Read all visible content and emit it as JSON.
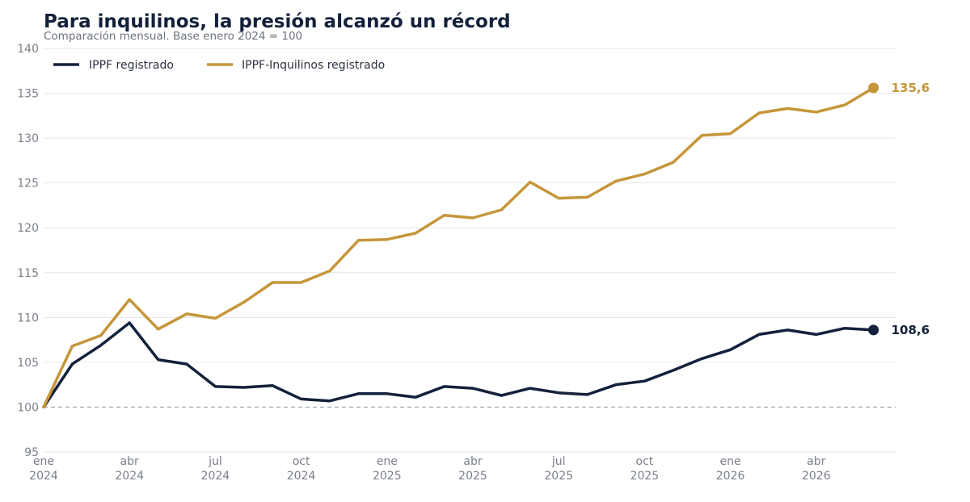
{
  "title": "Para inquilinos, la presión alcanzó un récord",
  "subtitle": "Comparación mensual. Base enero 2024 = 100",
  "colors": {
    "ippf": "#13213b",
    "ippf_inquilinos": "#c5963a",
    "grid": "#e6e6e6",
    "baseline": "#9aa0a8",
    "tick_text": "#7a808a"
  },
  "chart_data": {
    "type": "line",
    "title": "Para inquilinos, la presión alcanzó un récord",
    "subtitle": "Comparación mensual. Base enero 2024 = 100",
    "xlabel": "",
    "ylabel": "",
    "ylim": [
      95,
      140
    ],
    "yticks": [
      95,
      100,
      105,
      110,
      115,
      120,
      125,
      130,
      135,
      140
    ],
    "grid": true,
    "legend_position": "top-left",
    "baseline": 100,
    "x_ticks": [
      {
        "index": 0,
        "month": "ene",
        "year": "2024"
      },
      {
        "index": 3,
        "month": "abr",
        "year": "2024"
      },
      {
        "index": 6,
        "month": "jul",
        "year": "2024"
      },
      {
        "index": 9,
        "month": "oct",
        "year": "2024"
      },
      {
        "index": 12,
        "month": "ene",
        "year": "2025"
      },
      {
        "index": 15,
        "month": "abr",
        "year": "2025"
      },
      {
        "index": 18,
        "month": "jul",
        "year": "2025"
      },
      {
        "index": 21,
        "month": "oct",
        "year": "2025"
      },
      {
        "index": 24,
        "month": "ene",
        "year": "2026"
      },
      {
        "index": 27,
        "month": "abr",
        "year": "2026"
      }
    ],
    "series": [
      {
        "name": "IPPF registrado",
        "color": "#13213b",
        "end_label": "108,6",
        "values": [
          100,
          104.8,
          106.9,
          109.4,
          105.3,
          104.8,
          102.3,
          102.2,
          102.4,
          100.9,
          100.7,
          101.5,
          101.5,
          101.1,
          102.3,
          102.1,
          101.3,
          102.1,
          101.6,
          101.4,
          102.5,
          102.9,
          104.1,
          105.4,
          106.4,
          108.1,
          108.6,
          108.1,
          108.8,
          108.6
        ]
      },
      {
        "name": "IPPF-Inquilinos registrado",
        "color": "#c5963a",
        "end_label": "135,6",
        "values": [
          100,
          106.8,
          108.0,
          112.0,
          108.7,
          110.4,
          109.9,
          111.7,
          113.9,
          113.9,
          115.2,
          118.6,
          118.7,
          119.4,
          121.4,
          121.1,
          122.0,
          125.1,
          123.3,
          123.4,
          125.2,
          126.0,
          127.3,
          130.3,
          130.5,
          132.8,
          133.3,
          132.9,
          133.7,
          135.6
        ]
      }
    ]
  }
}
